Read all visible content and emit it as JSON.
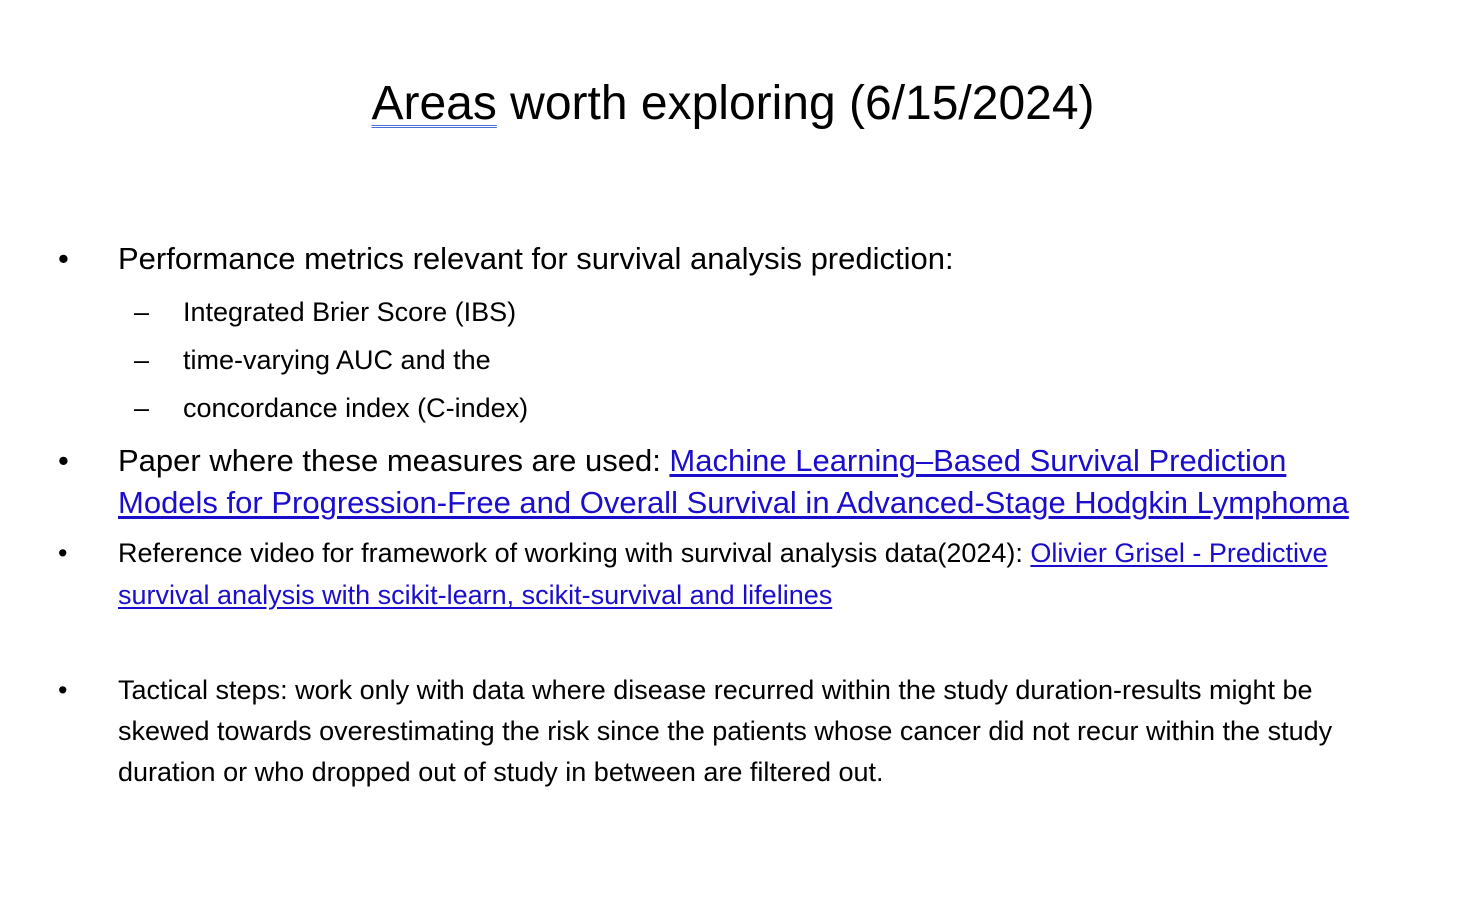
{
  "slide": {
    "title_first": "Areas",
    "title_rest": " worth exploring (6/15/2024)",
    "bullet_glyph": "•",
    "dash_glyph": "–",
    "bullets": [
      {
        "text": "Performance metrics relevant for survival analysis prediction:",
        "subitems": [
          "Integrated Brier Score (IBS)",
          "time-varying AUC and the",
          "concordance index (C-index)"
        ]
      },
      {
        "text": "Paper where these measures are used: ",
        "link": "Machine Learning–Based Survival Prediction Models for Progression-Free and Overall Survival in Advanced-Stage Hodgkin Lymphoma"
      },
      {
        "text": "Reference video for framework of working with survival analysis data(2024): ",
        "link": "Olivier Grisel - Predictive survival analysis with scikit-learn, scikit-survival and lifelines"
      },
      {
        "text": "Tactical steps: work only with data where disease recurred within the study duration-results might be skewed towards overestimating the risk since the patients whose cancer did not recur within the study duration or who dropped out of study in between are filtered out."
      }
    ],
    "link_color": "#1a0dcc",
    "title_underline_color": "#4a6fd6"
  }
}
